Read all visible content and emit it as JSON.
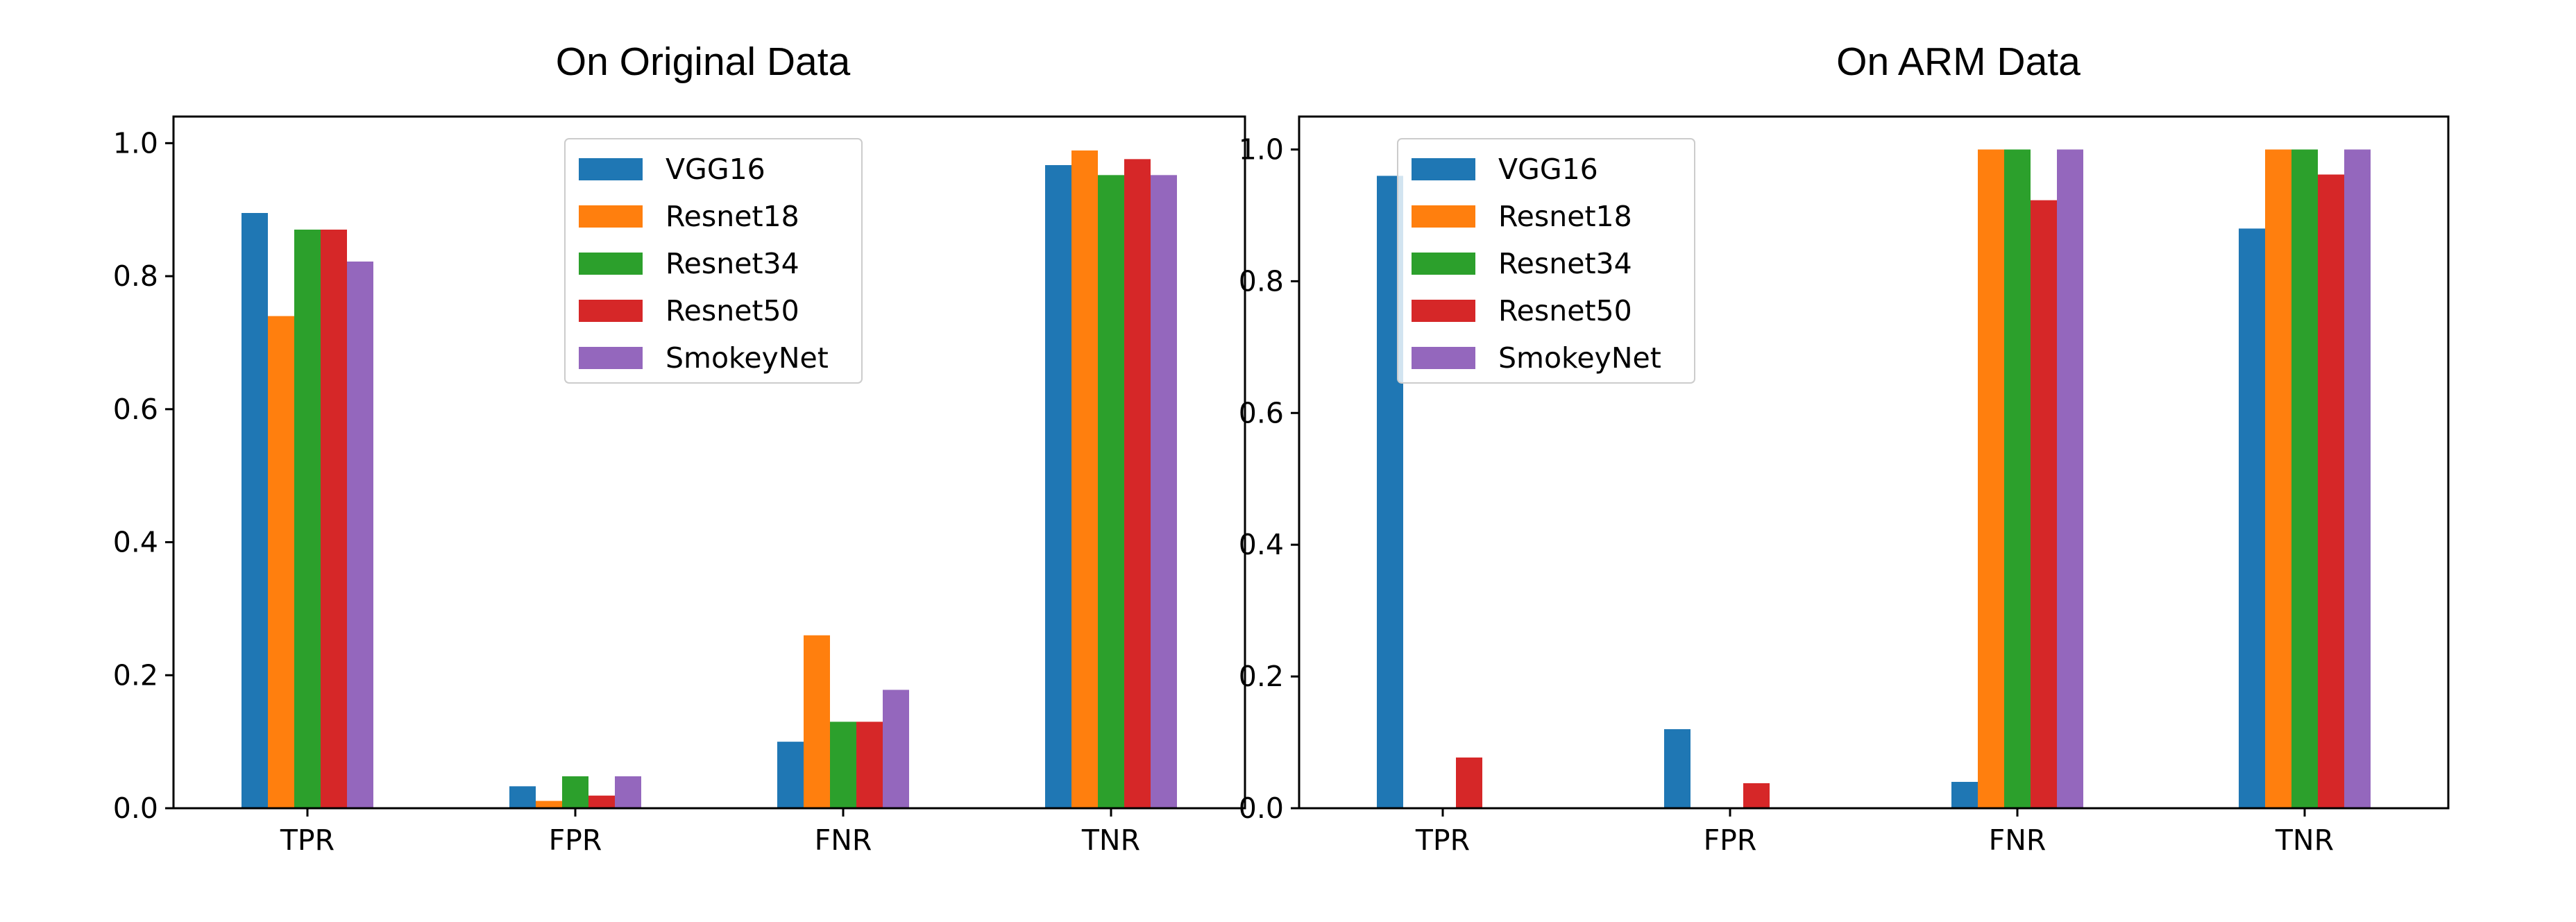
{
  "chart_data": [
    {
      "type": "bar",
      "title": "On Original Data",
      "xlabel": "",
      "ylabel": "",
      "categories": [
        "TPR",
        "FPR",
        "FNR",
        "TNR"
      ],
      "ylim": [
        0,
        1.04
      ],
      "yticks": [
        "0.0",
        "0.2",
        "0.4",
        "0.6",
        "0.8",
        "1.0"
      ],
      "grid": false,
      "legend_position": "top-center",
      "series": [
        {
          "name": "VGG16",
          "color": "#1f77b4",
          "values": [
            0.895,
            0.033,
            0.1,
            0.967
          ]
        },
        {
          "name": "Resnet18",
          "color": "#ff7f0e",
          "values": [
            0.74,
            0.011,
            0.26,
            0.989
          ]
        },
        {
          "name": "Resnet34",
          "color": "#2ca02c",
          "values": [
            0.87,
            0.048,
            0.13,
            0.952
          ]
        },
        {
          "name": "Resnet50",
          "color": "#d62728",
          "values": [
            0.87,
            0.019,
            0.13,
            0.976
          ]
        },
        {
          "name": "SmokeyNet",
          "color": "#9467bd",
          "values": [
            0.822,
            0.048,
            0.178,
            0.952
          ]
        }
      ]
    },
    {
      "type": "bar",
      "title": "On ARM Data",
      "xlabel": "",
      "ylabel": "",
      "categories": [
        "TPR",
        "FPR",
        "FNR",
        "TNR"
      ],
      "ylim": [
        0,
        1.05
      ],
      "yticks": [
        "0.0",
        "0.2",
        "0.4",
        "0.6",
        "0.8",
        "1.0"
      ],
      "grid": false,
      "legend_position": "top-left",
      "series": [
        {
          "name": "VGG16",
          "color": "#1f77b4",
          "values": [
            0.96,
            0.12,
            0.04,
            0.88
          ]
        },
        {
          "name": "Resnet18",
          "color": "#ff7f0e",
          "values": [
            0.0,
            0.0,
            1.0,
            1.0
          ]
        },
        {
          "name": "Resnet34",
          "color": "#2ca02c",
          "values": [
            0.0,
            0.0,
            1.0,
            1.0
          ]
        },
        {
          "name": "Resnet50",
          "color": "#d62728",
          "values": [
            0.077,
            0.038,
            0.923,
            0.962
          ]
        },
        {
          "name": "SmokeyNet",
          "color": "#9467bd",
          "values": [
            0.0,
            0.0,
            1.0,
            1.0
          ]
        }
      ]
    }
  ]
}
